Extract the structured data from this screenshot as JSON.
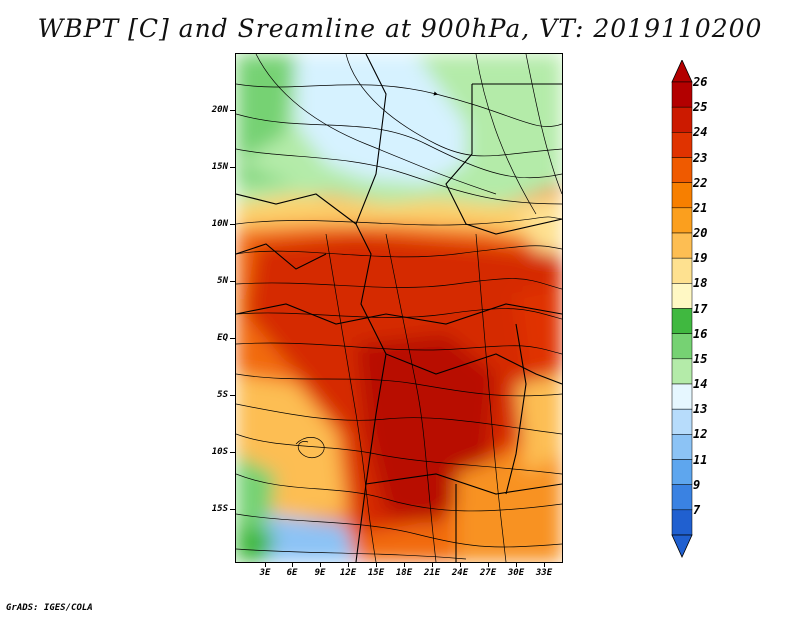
{
  "title": "WBPT [C] and Sreamline at 900hPa, VT: 2019110200",
  "map": {
    "lat_labels": [
      "20N",
      "15N",
      "10N",
      "5N",
      "EQ",
      "5S",
      "10S",
      "15S"
    ],
    "lon_labels": [
      "3E",
      "6E",
      "9E",
      "12E",
      "15E",
      "18E",
      "21E",
      "24E",
      "27E",
      "30E",
      "33E"
    ]
  },
  "colorbar": {
    "labels": [
      "26",
      "25",
      "24",
      "23",
      "22",
      "21",
      "20",
      "19",
      "18",
      "17",
      "16",
      "15",
      "14",
      "13",
      "12",
      "11",
      "9",
      "7"
    ],
    "colors": [
      "#b30000",
      "#cc1a00",
      "#e03300",
      "#ef5a00",
      "#f77f00",
      "#fb9f1e",
      "#fdbe53",
      "#fee190",
      "#fff8c4",
      "#40b840",
      "#76d273",
      "#b4eba9",
      "#e6f7ff",
      "#b7dcfb",
      "#8cc3f5",
      "#5ea6ee",
      "#3a82e2",
      "#2060d0"
    ]
  },
  "footer": "GrADS: IGES/COLA"
}
